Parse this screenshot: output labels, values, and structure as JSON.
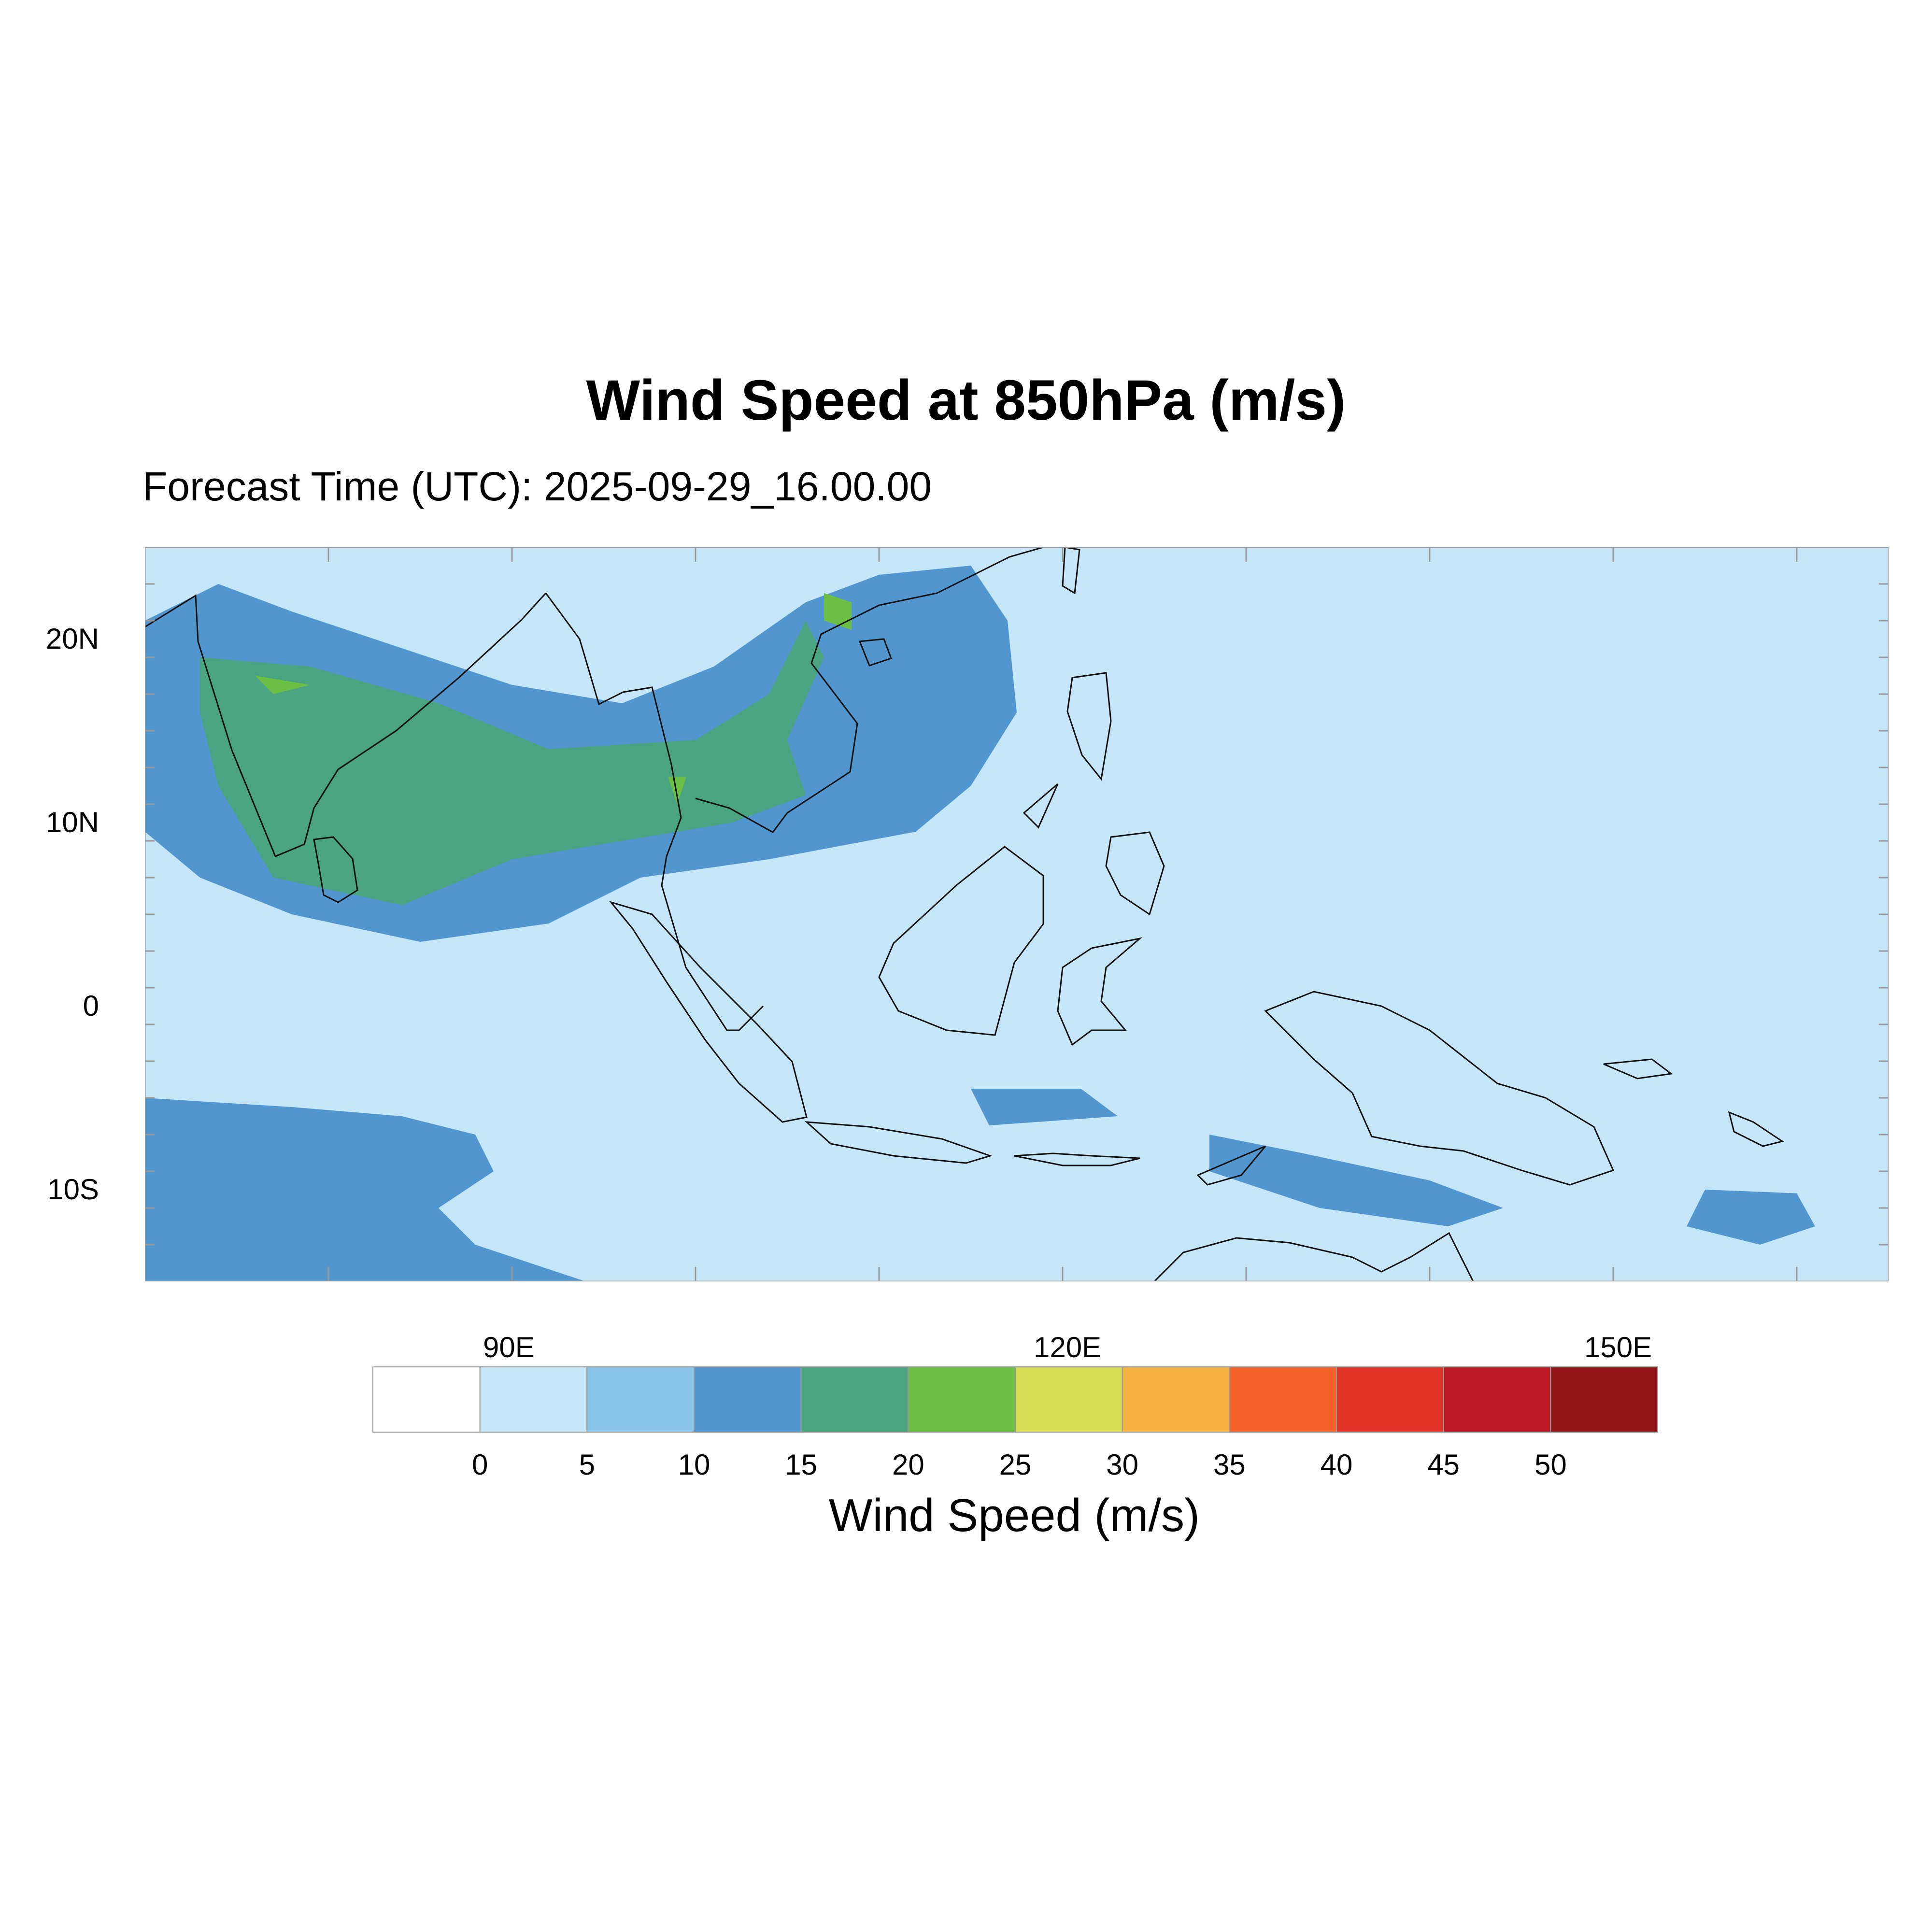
{
  "title": "Wind Speed at 850hPa (m/s)",
  "subtitle": "Forecast Time (UTC): 2025-09-29_16.00.00",
  "map": {
    "lon_range": [
      70,
      165
    ],
    "lat_range": [
      -15,
      25
    ],
    "x_ticks": [
      {
        "value": 90,
        "label": "90E"
      },
      {
        "value": 120,
        "label": "120E"
      },
      {
        "value": 150,
        "label": "150E"
      }
    ],
    "y_ticks": [
      {
        "value": 20,
        "label": "20N"
      },
      {
        "value": 10,
        "label": "10N"
      },
      {
        "value": 0,
        "label": "0"
      },
      {
        "value": -10,
        "label": "10S"
      }
    ],
    "background_color": "#c4e6f8"
  },
  "colorbar": {
    "title": "Wind Speed (m/s)",
    "levels": [
      "0",
      "5",
      "10",
      "15",
      "20",
      "25",
      "30",
      "35",
      "40",
      "45",
      "50"
    ],
    "colors": [
      "#ffffff",
      "#c4e6f8",
      "#88c4ea",
      "#5296d0",
      "#4aa381",
      "#6bbf45",
      "#d6dd55",
      "#f5b142",
      "#f2612a",
      "#df3427",
      "#be1a27",
      "#921519"
    ]
  },
  "chart_data": {
    "type": "heatmap",
    "title": "Wind Speed at 850hPa (m/s)",
    "subtitle": "Forecast Time (UTC): 2025-09-29_16.00.00",
    "colorbar_label": "Wind Speed (m/s)",
    "xlim": [
      70,
      165
    ],
    "ylim": [
      -15,
      25
    ],
    "units": "m/s",
    "contour_levels": [
      0,
      5,
      10,
      15,
      20,
      25,
      30,
      35,
      40,
      45,
      50
    ],
    "regions": [
      {
        "band": "10-15",
        "polygon": [
          [
            70,
            21
          ],
          [
            74,
            23
          ],
          [
            78,
            21.5
          ],
          [
            84,
            19.5
          ],
          [
            90,
            17.5
          ],
          [
            96,
            16.5
          ],
          [
            101,
            18.5
          ],
          [
            106,
            22
          ],
          [
            110,
            23.5
          ],
          [
            115,
            24
          ],
          [
            117,
            21
          ],
          [
            117.5,
            16
          ],
          [
            115,
            12
          ],
          [
            112,
            9.5
          ],
          [
            104,
            8
          ],
          [
            97,
            7
          ],
          [
            92,
            4.5
          ],
          [
            85,
            3.5
          ],
          [
            78,
            5
          ],
          [
            73,
            7
          ],
          [
            70,
            9.5
          ]
        ]
      },
      {
        "band": "10-15",
        "polygon": [
          [
            70,
            -5
          ],
          [
            78,
            -5.5
          ],
          [
            84,
            -6
          ],
          [
            88,
            -7
          ],
          [
            89,
            -9
          ],
          [
            86,
            -11
          ],
          [
            88,
            -13
          ],
          [
            94,
            -15
          ],
          [
            70,
            -15
          ]
        ]
      },
      {
        "band": "10-15",
        "polygon": [
          [
            128,
            -7
          ],
          [
            133,
            -8
          ],
          [
            140,
            -9.5
          ],
          [
            144,
            -11
          ],
          [
            141,
            -12
          ],
          [
            134,
            -11
          ],
          [
            128,
            -9
          ]
        ]
      },
      {
        "band": "10-15",
        "polygon": [
          [
            115,
            -4.5
          ],
          [
            121,
            -4.5
          ],
          [
            123,
            -6
          ],
          [
            116,
            -6.5
          ]
        ]
      },
      {
        "band": "10-15",
        "polygon": [
          [
            155,
            -10
          ],
          [
            160,
            -10.2
          ],
          [
            161,
            -12
          ],
          [
            158,
            -13
          ],
          [
            154,
            -12
          ]
        ]
      },
      {
        "band": "15-20",
        "polygon": [
          [
            73,
            19
          ],
          [
            79,
            18.5
          ],
          [
            86,
            16.5
          ],
          [
            92,
            14
          ],
          [
            100,
            14.5
          ],
          [
            104,
            17
          ],
          [
            106,
            21
          ],
          [
            107,
            19
          ],
          [
            105,
            14.5
          ],
          [
            106,
            11.5
          ],
          [
            102,
            10
          ],
          [
            96,
            9
          ],
          [
            90,
            8
          ],
          [
            84,
            5.5
          ],
          [
            77,
            7
          ],
          [
            74,
            12
          ],
          [
            73,
            16
          ]
        ]
      },
      {
        "band": "20-25",
        "polygon": [
          [
            76,
            18
          ],
          [
            79,
            17.5
          ],
          [
            77,
            17
          ]
        ]
      },
      {
        "band": "20-25",
        "polygon": [
          [
            107,
            22.5
          ],
          [
            108.5,
            22
          ],
          [
            108.5,
            20.5
          ],
          [
            107,
            21
          ]
        ]
      },
      {
        "band": "20-25",
        "polygon": [
          [
            98.5,
            12.5
          ],
          [
            99.5,
            12.5
          ],
          [
            99,
            11
          ]
        ]
      }
    ]
  }
}
